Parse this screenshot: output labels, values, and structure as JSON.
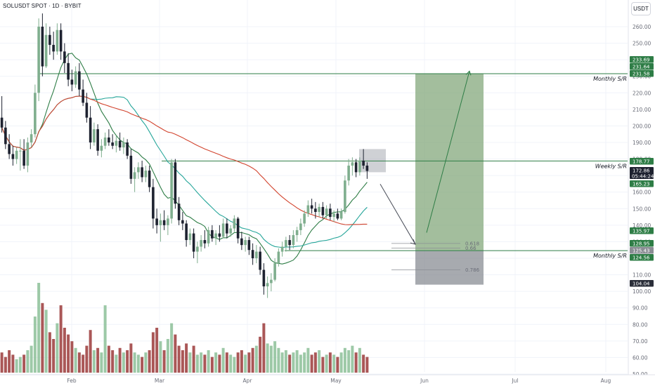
{
  "header": {
    "symbol": "SOLUSDT SPOT · 1D · BYBIT",
    "currency_button": "USDT"
  },
  "colors": {
    "up": "#7fae8e",
    "down": "#1e2230",
    "ma_short": "#2e7d46",
    "ma_mid": "#26a69a",
    "ma_long": "#d2442e",
    "volume_up": "#8cc098",
    "volume_down": "#9b3a3a",
    "level_line": "#2e7d46",
    "target_zone": "#84a87c",
    "stop_zone": "#8a8d94"
  },
  "chart_data": {
    "type": "candlestick",
    "y_axis": {
      "ticks": [
        260,
        250,
        240,
        230,
        220,
        210,
        200,
        190,
        180,
        170,
        160,
        150,
        140,
        130,
        120,
        110,
        100,
        90,
        80,
        70,
        60,
        50
      ],
      "tick_labels": [
        "260.00",
        "250.00",
        "240.00",
        "230.00",
        "220.00",
        "210.00",
        "200.00",
        "190.00",
        "180.00",
        "170.00",
        "160.00",
        "150.00",
        "140.00",
        "130.00",
        "120.00",
        "110.00",
        "100.00",
        "90.00",
        "80.00",
        "70.00",
        "60.00",
        "50.00"
      ]
    },
    "x_axis": {
      "labels": [
        "Feb",
        "Mar",
        "Apr",
        "May",
        "Jun",
        "Jul",
        "Aug"
      ]
    },
    "price_tags": [
      {
        "text": "233.69",
        "value": 233.69,
        "color": "#2e7d46"
      },
      {
        "text": "231.64",
        "value": 231.64,
        "color": "#2e7d46"
      },
      {
        "text": "231.58",
        "value": 231.58,
        "color": "#2e7d46"
      },
      {
        "text": "178.77",
        "value": 178.77,
        "color": "#2e7d46"
      },
      {
        "text": "172.86",
        "text2": "05:44:24",
        "value": 172.86,
        "color": "#1e2230"
      },
      {
        "text": "165.23",
        "value": 165.23,
        "color": "#2e7d46"
      },
      {
        "text": "135.97",
        "value": 135.97,
        "color": "#2e7d46"
      },
      {
        "text": "128.95",
        "value": 128.95,
        "color": "#2e7d46"
      },
      {
        "text": "125.43",
        "value": 125.43,
        "color": "#8a8d94"
      },
      {
        "text": "124.56",
        "value": 124.56,
        "color": "#2e7d46"
      },
      {
        "text": "104.04",
        "value": 104.04,
        "color": "#2a2e39"
      }
    ],
    "annotations": [
      {
        "label": "Monthly S/R",
        "value": 231.6
      },
      {
        "label": "Weekly S/R",
        "value": 178.8
      },
      {
        "label": "Monthly S/R",
        "value": 124.6
      }
    ],
    "fib_levels": [
      {
        "label": "0.618",
        "value": 128.95
      },
      {
        "label": "0.66",
        "value": 126.2
      },
      {
        "label": "0.786",
        "value": 113.0
      }
    ],
    "trade_setup": {
      "entry_projection": 128.95,
      "target_zone": [
        124.56,
        231.58
      ],
      "stop_zone": [
        104.04,
        124.56
      ],
      "target_arrow_end": 231.64,
      "current_price": 172.86,
      "consolidation_box": [
        172.0,
        186.0
      ]
    },
    "candles": [
      [
        205.0,
        218.0,
        196.0,
        199.0
      ],
      [
        199.0,
        203.0,
        186.0,
        189.0
      ],
      [
        189.0,
        195.0,
        180.0,
        183.0
      ],
      [
        183.0,
        188.0,
        176.0,
        180.0
      ],
      [
        180.0,
        187.0,
        177.0,
        185.0
      ],
      [
        185.0,
        192.0,
        173.0,
        185.0
      ],
      [
        185.0,
        192.0,
        174.0,
        176.0
      ],
      [
        176.0,
        193.0,
        172.0,
        190.0
      ],
      [
        190.0,
        198.0,
        187.0,
        195.0
      ],
      [
        195.0,
        225.0,
        193.0,
        220.0
      ],
      [
        220.0,
        265.0,
        215.0,
        260.0
      ],
      [
        260.0,
        268.0,
        230.0,
        236.0
      ],
      [
        236.0,
        262.0,
        235.0,
        255.0
      ],
      [
        255.0,
        260.0,
        243.0,
        249.0
      ],
      [
        249.0,
        257.0,
        240.0,
        245.0
      ],
      [
        245.0,
        262.0,
        243.0,
        258.0
      ],
      [
        258.0,
        262.0,
        240.0,
        245.0
      ],
      [
        245.0,
        250.0,
        232.0,
        238.0
      ],
      [
        238.0,
        244.0,
        224.0,
        228.0
      ],
      [
        228.0,
        234.0,
        221.0,
        225.0
      ],
      [
        225.0,
        236.0,
        223.0,
        233.0
      ],
      [
        233.0,
        238.0,
        218.0,
        222.0
      ],
      [
        222.0,
        228.0,
        212.0,
        214.0
      ],
      [
        214.0,
        220.0,
        202.0,
        205.0
      ],
      [
        205.0,
        212.0,
        186.0,
        190.0
      ],
      [
        190.0,
        202.0,
        188.0,
        198.0
      ],
      [
        198.0,
        201.0,
        182.0,
        185.0
      ],
      [
        185.0,
        192.0,
        181.0,
        188.0
      ],
      [
        188.0,
        196.0,
        186.0,
        193.0
      ],
      [
        193.0,
        198.0,
        188.0,
        190.0
      ],
      [
        190.0,
        195.0,
        186.0,
        188.0
      ],
      [
        188.0,
        194.0,
        184.0,
        191.0
      ],
      [
        191.0,
        196.0,
        185.0,
        187.0
      ],
      [
        187.0,
        193.0,
        183.0,
        190.0
      ],
      [
        190.0,
        192.0,
        180.0,
        182.0
      ],
      [
        182.0,
        186.0,
        165.0,
        168.0
      ],
      [
        168.0,
        175.0,
        160.0,
        172.0
      ],
      [
        172.0,
        178.0,
        168.0,
        175.0
      ],
      [
        175.0,
        179.0,
        166.0,
        169.0
      ],
      [
        169.0,
        176.0,
        166.0,
        173.0
      ],
      [
        173.0,
        176.0,
        160.0,
        163.0
      ],
      [
        163.0,
        168.0,
        138.0,
        144.0
      ],
      [
        144.0,
        150.0,
        135.0,
        140.0
      ],
      [
        140.0,
        147.0,
        130.0,
        143.0
      ],
      [
        143.0,
        149.0,
        137.0,
        140.0
      ],
      [
        140.0,
        146.0,
        134.0,
        144.0
      ],
      [
        144.0,
        180.0,
        141.0,
        178.0
      ],
      [
        178.0,
        180.0,
        150.0,
        153.0
      ],
      [
        153.0,
        157.0,
        140.0,
        143.0
      ],
      [
        143.0,
        148.0,
        137.0,
        141.0
      ],
      [
        141.0,
        143.0,
        127.0,
        131.0
      ],
      [
        131.0,
        138.0,
        128.0,
        135.0
      ],
      [
        135.0,
        138.0,
        120.0,
        124.0
      ],
      [
        124.0,
        130.0,
        117.0,
        127.0
      ],
      [
        127.0,
        134.0,
        124.0,
        131.0
      ],
      [
        131.0,
        137.0,
        126.0,
        129.0
      ],
      [
        129.0,
        139.0,
        127.0,
        137.0
      ],
      [
        137.0,
        140.0,
        130.0,
        132.0
      ],
      [
        132.0,
        137.0,
        128.0,
        135.0
      ],
      [
        135.0,
        140.0,
        130.0,
        133.0
      ],
      [
        133.0,
        144.0,
        132.0,
        141.0
      ],
      [
        141.0,
        144.0,
        132.0,
        135.0
      ],
      [
        135.0,
        140.0,
        133.0,
        138.0
      ],
      [
        138.0,
        146.0,
        136.0,
        144.0
      ],
      [
        144.0,
        145.0,
        129.0,
        132.0
      ],
      [
        132.0,
        136.0,
        125.0,
        128.0
      ],
      [
        128.0,
        133.0,
        124.0,
        131.0
      ],
      [
        131.0,
        133.0,
        122.0,
        125.0
      ],
      [
        125.0,
        129.0,
        116.0,
        120.0
      ],
      [
        120.0,
        128.0,
        117.0,
        124.0
      ],
      [
        124.0,
        127.0,
        110.0,
        113.0
      ],
      [
        113.0,
        117.0,
        98.0,
        103.0
      ],
      [
        103.0,
        109.0,
        96.0,
        105.0
      ],
      [
        105.0,
        111.0,
        100.0,
        107.0
      ],
      [
        107.0,
        120.0,
        106.0,
        117.0
      ],
      [
        117.0,
        126.0,
        115.0,
        124.0
      ],
      [
        124.0,
        130.0,
        121.0,
        127.0
      ],
      [
        127.0,
        133.0,
        124.0,
        131.0
      ],
      [
        131.0,
        134.0,
        125.0,
        128.0
      ],
      [
        128.0,
        137.0,
        126.0,
        134.0
      ],
      [
        134.0,
        139.0,
        130.0,
        137.0
      ],
      [
        137.0,
        144.0,
        134.0,
        141.0
      ],
      [
        141.0,
        149.0,
        139.0,
        147.0
      ],
      [
        147.0,
        155.0,
        145.0,
        152.0
      ],
      [
        152.0,
        156.0,
        147.0,
        150.0
      ],
      [
        150.0,
        154.0,
        144.0,
        148.0
      ],
      [
        148.0,
        153.0,
        145.0,
        151.0
      ],
      [
        151.0,
        154.0,
        144.0,
        146.0
      ],
      [
        146.0,
        152.0,
        144.0,
        150.0
      ],
      [
        150.0,
        153.0,
        143.0,
        145.0
      ],
      [
        145.0,
        149.0,
        142.0,
        147.0
      ],
      [
        147.0,
        150.0,
        143.0,
        144.0
      ],
      [
        144.0,
        150.0,
        143.0,
        148.0
      ],
      [
        148.0,
        170.0,
        147.0,
        167.0
      ],
      [
        167.0,
        180.0,
        164.0,
        176.0
      ],
      [
        176.0,
        181.0,
        170.0,
        178.0
      ],
      [
        178.0,
        180.0,
        169.0,
        172.0
      ],
      [
        172.0,
        181.0,
        170.0,
        179.0
      ],
      [
        179.0,
        186.0,
        174.0,
        176.0
      ],
      [
        176.0,
        178.0,
        168.0,
        172.8
      ]
    ],
    "volume": {
      "ticks": [],
      "bars": [
        9,
        7,
        10,
        8,
        6,
        7,
        8,
        10,
        12,
        25,
        40,
        31,
        28,
        18,
        15,
        22,
        30,
        20,
        17,
        14,
        11,
        9,
        8,
        12,
        19,
        10,
        11,
        9,
        30,
        12,
        10,
        8,
        11,
        9,
        10,
        13,
        9,
        8,
        7,
        9,
        10,
        18,
        20,
        14,
        10,
        15,
        22,
        17,
        12,
        10,
        13,
        9,
        12,
        8,
        9,
        8,
        10,
        7,
        9,
        8,
        11,
        9,
        8,
        7,
        9,
        10,
        8,
        9,
        11,
        12,
        16,
        22,
        13,
        12,
        14,
        11,
        9,
        10,
        8,
        9,
        10,
        8,
        9,
        11,
        8,
        9,
        10,
        7,
        8,
        9,
        8,
        7,
        9,
        11,
        10,
        12,
        9,
        11,
        8,
        7
      ]
    }
  }
}
